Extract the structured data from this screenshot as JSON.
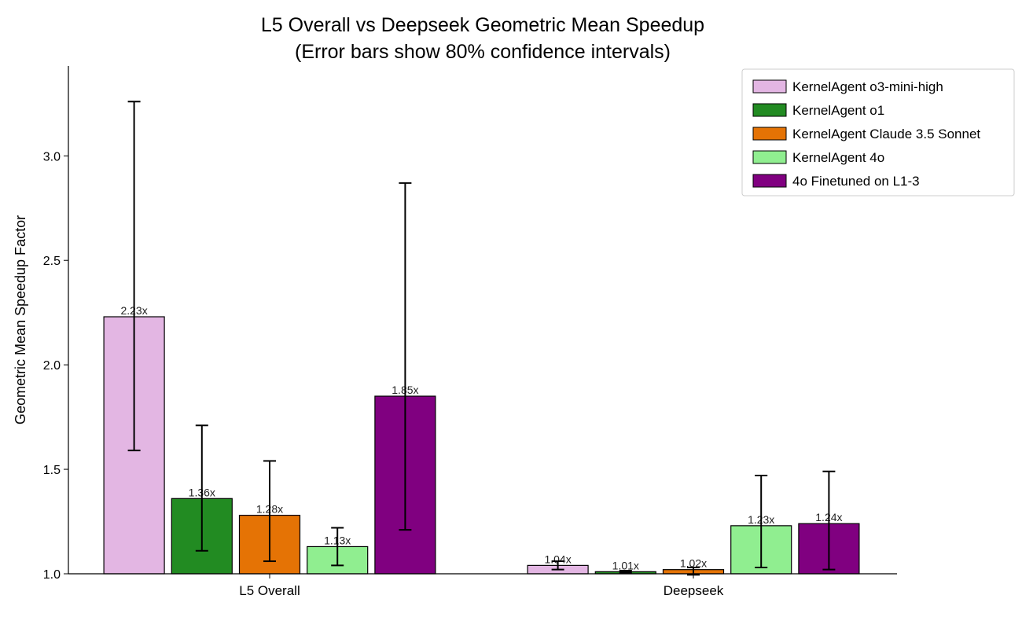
{
  "chart_data": {
    "type": "bar",
    "title": "L5 Overall vs Deepseek Geometric Mean Speedup",
    "subtitle": "(Error bars show 80% confidence intervals)",
    "xlabel": "",
    "ylabel": "Geometric Mean Speedup Factor",
    "ylim": [
      1.0,
      3.43
    ],
    "yticks": [
      1.0,
      1.5,
      2.0,
      2.5,
      3.0
    ],
    "ytick_labels": [
      "1.0",
      "1.5",
      "2.0",
      "2.5",
      "3.0"
    ],
    "categories": [
      "L5 Overall",
      "Deepseek"
    ],
    "legend_position": "top-right",
    "series": [
      {
        "name": "KernelAgent o3-mini-high",
        "color": "#e3b6e3",
        "values": [
          2.23,
          1.04
        ],
        "labels": [
          "2.23x",
          "1.04x"
        ],
        "err_low": [
          1.59,
          1.02
        ],
        "err_high": [
          3.26,
          1.06
        ]
      },
      {
        "name": "KernelAgent o1",
        "color": "#228b22",
        "values": [
          1.36,
          1.01
        ],
        "labels": [
          "1.36x",
          "1.01x"
        ],
        "err_low": [
          1.11,
          1.005
        ],
        "err_high": [
          1.71,
          1.015
        ]
      },
      {
        "name": "KernelAgent Claude 3.5 Sonnet",
        "color": "#e57305",
        "values": [
          1.28,
          1.02
        ],
        "labels": [
          "1.28x",
          "1.02x"
        ],
        "err_low": [
          1.06,
          0.995
        ],
        "err_high": [
          1.54,
          1.03
        ]
      },
      {
        "name": "KernelAgent 4o",
        "color": "#90ee90",
        "values": [
          1.13,
          1.23
        ],
        "labels": [
          "1.13x",
          "1.23x"
        ],
        "err_low": [
          1.04,
          1.03
        ],
        "err_high": [
          1.22,
          1.47
        ]
      },
      {
        "name": "4o Finetuned on L1-3",
        "color": "#800080",
        "values": [
          1.85,
          1.24
        ],
        "labels": [
          "1.85x",
          "1.24x"
        ],
        "err_low": [
          1.21,
          1.02
        ],
        "err_high": [
          2.87,
          1.49
        ]
      }
    ]
  }
}
